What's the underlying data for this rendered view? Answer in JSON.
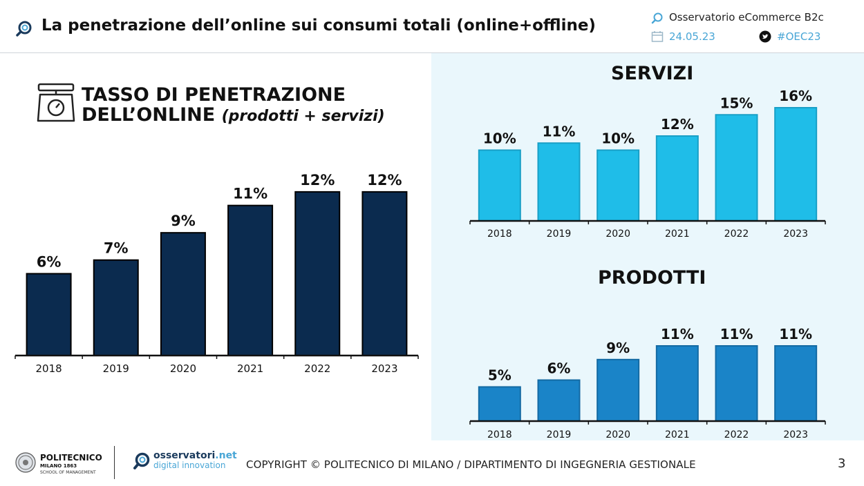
{
  "header": {
    "title": "La penetrazione dell’online sui consumi totali (online+offline)",
    "brand": "Osservatorio eCommerce B2c",
    "date": "24.05.23",
    "hashtag": "#OEC23"
  },
  "left_title": {
    "line1": "TASSO DI PENETRAZIONE",
    "line2": "DELL’ONLINE",
    "line2_sub": "(prodotti + servizi)"
  },
  "icons": [
    "search-icon",
    "calendar-icon",
    "twitter-icon",
    "scale-icon"
  ],
  "colors": {
    "total_bar": "#0b2b4f",
    "servizi_bar": "#1fbde8",
    "prodotti_bar": "#1a84c8",
    "panel_bg": "#eaf7fc",
    "accent": "#49a6d6"
  },
  "chart_data": [
    {
      "type": "bar",
      "title": "TASSO DI PENETRAZIONE DELL’ONLINE (prodotti + servizi)",
      "categories": [
        "2018",
        "2019",
        "2020",
        "2021",
        "2022",
        "2023"
      ],
      "values": [
        6,
        7,
        9,
        11,
        12,
        12
      ],
      "labels": [
        "6%",
        "7%",
        "9%",
        "11%",
        "12%",
        "12%"
      ],
      "ylim": [
        0,
        12.5
      ],
      "grid": false
    },
    {
      "type": "bar",
      "title": "SERVIZI",
      "categories": [
        "2018",
        "2019",
        "2020",
        "2021",
        "2022",
        "2023"
      ],
      "values": [
        10,
        11,
        10,
        12,
        15,
        16
      ],
      "labels": [
        "10%",
        "11%",
        "10%",
        "12%",
        "15%",
        "16%"
      ],
      "ylim": [
        0,
        16
      ],
      "grid": false
    },
    {
      "type": "bar",
      "title": "PRODOTTI",
      "categories": [
        "2018",
        "2019",
        "2020",
        "2021",
        "2022",
        "2023"
      ],
      "values": [
        5,
        6,
        9,
        11,
        11,
        11
      ],
      "labels": [
        "5%",
        "6%",
        "9%",
        "11%",
        "11%",
        "11%"
      ],
      "ylim": [
        0,
        11
      ],
      "grid": false
    }
  ],
  "footer": {
    "logo1_name": "POLITECNICO",
    "logo1_sub1": "MILANO 1863",
    "logo1_sub2": "SCHOOL OF MANAGEMENT",
    "logo2_name": "osservatori",
    "logo2_net": ".net",
    "logo2_sub": "digital innovation",
    "copyright": "COPYRIGHT © POLITECNICO DI MILANO / DIPARTIMENTO DI INGEGNERIA GESTIONALE",
    "page": "3"
  }
}
